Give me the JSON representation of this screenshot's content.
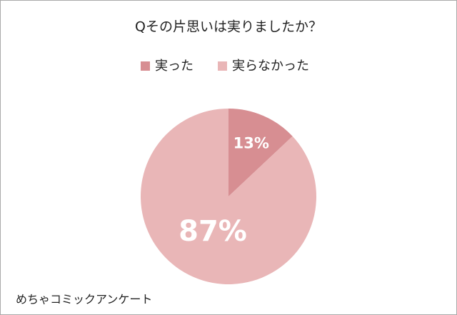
{
  "chart_data": {
    "type": "pie",
    "title": "Qその片思いは実りましたか？",
    "categories": [
      "実った",
      "実らなかった"
    ],
    "values": [
      13,
      87
    ],
    "value_labels": [
      "13%",
      "87%"
    ],
    "colors": [
      "#d78e92",
      "#e9b6b7"
    ],
    "legend": "top",
    "annotation": "めちゃコミックアンケート"
  }
}
